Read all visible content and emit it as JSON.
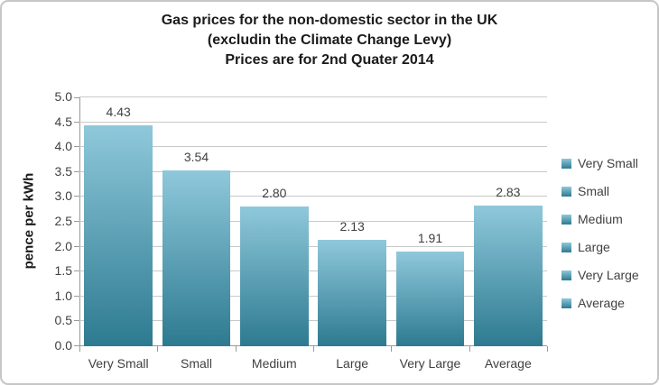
{
  "title": {
    "line1": "Gas prices for the non-domestic sector in the UK",
    "line2": "(excludin the Climate Change Levy)",
    "line3": "Prices are for 2nd Quater 2014"
  },
  "chart_data": {
    "type": "bar",
    "title": "Gas prices for the non-domestic sector in the UK (excludin the Climate Change Levy) Prices are for 2nd Quater 2014",
    "categories": [
      "Very Small",
      "Small",
      "Medium",
      "Large",
      "Very Large",
      "Average"
    ],
    "values": [
      4.43,
      3.54,
      2.8,
      2.13,
      1.91,
      2.83
    ],
    "data_labels": [
      "4.43",
      "3.54",
      "2.80",
      "2.13",
      "1.91",
      "2.83"
    ],
    "xlabel": "",
    "ylabel": "pence per kWh",
    "ylim": [
      0.0,
      5.0
    ],
    "ytick_step": 0.5,
    "grid": true,
    "legend_position": "right",
    "legend_entries": [
      "Very Small",
      "Small",
      "Medium",
      "Large",
      "Very Large",
      "Average"
    ]
  },
  "colors": {
    "bar_gradient_top": "#8fc8db",
    "bar_gradient_bottom": "#2d7a90",
    "gridline": "#c9c9c9",
    "axis_line": "#9a9a9a",
    "label_text": "#404040",
    "title_text": "#1a1a1a",
    "frame_border": "#c6c6c6"
  }
}
